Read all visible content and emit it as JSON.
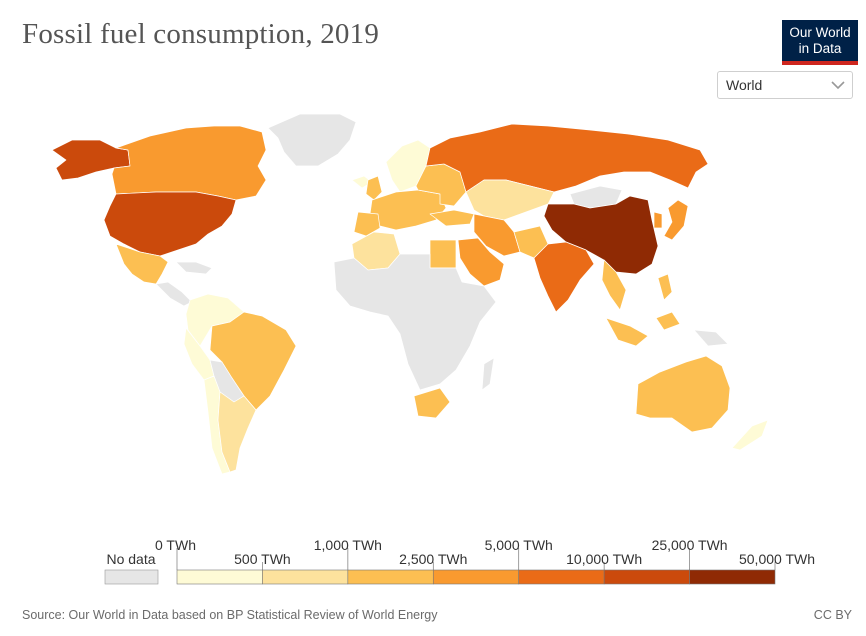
{
  "title": "Fossil fuel consumption, 2019",
  "logo": {
    "line1": "Our World",
    "line2": "in Data"
  },
  "selector": {
    "value": "World"
  },
  "legend": {
    "no_data_label": "No data",
    "no_data_color": "#e6e6e6",
    "top_labels": [
      "0 TWh",
      "1,000 TWh",
      "5,000 TWh",
      "25,000 TWh"
    ],
    "bottom_labels": [
      "500 TWh",
      "2,500 TWh",
      "10,000 TWh",
      "50,000 TWh"
    ],
    "bins": [
      {
        "color": "#fefbd6"
      },
      {
        "color": "#fde29d"
      },
      {
        "color": "#fcbf52"
      },
      {
        "color": "#f99a2f"
      },
      {
        "color": "#ea6b17"
      },
      {
        "color": "#cb4a0c"
      },
      {
        "color": "#8f2a04"
      }
    ]
  },
  "source": "Source: Our World in Data based on BP Statistical Review of World Energy",
  "license": "CC BY",
  "map_colors": {
    "no_data": "#e6e6e6",
    "china": "#8f2a04",
    "usa": "#cb4a0c",
    "russia": "#ea6b17",
    "india": "#ea6b17",
    "japan": "#f99a2f",
    "canada": "#f99a2f",
    "brazil": "#fcbf52",
    "australia": "#fcbf52",
    "mexico": "#fcbf52",
    "argentina": "#fde29d",
    "south_africa": "#fcbf52",
    "europe": "#fcbf52",
    "iran": "#f99a2f",
    "saudi_arabia": "#f99a2f",
    "kazakhstan": "#fde29d",
    "indonesia": "#fcbf52",
    "algeria": "#fde29d",
    "egypt": "#fcbf52",
    "small": "#fefbd6"
  }
}
